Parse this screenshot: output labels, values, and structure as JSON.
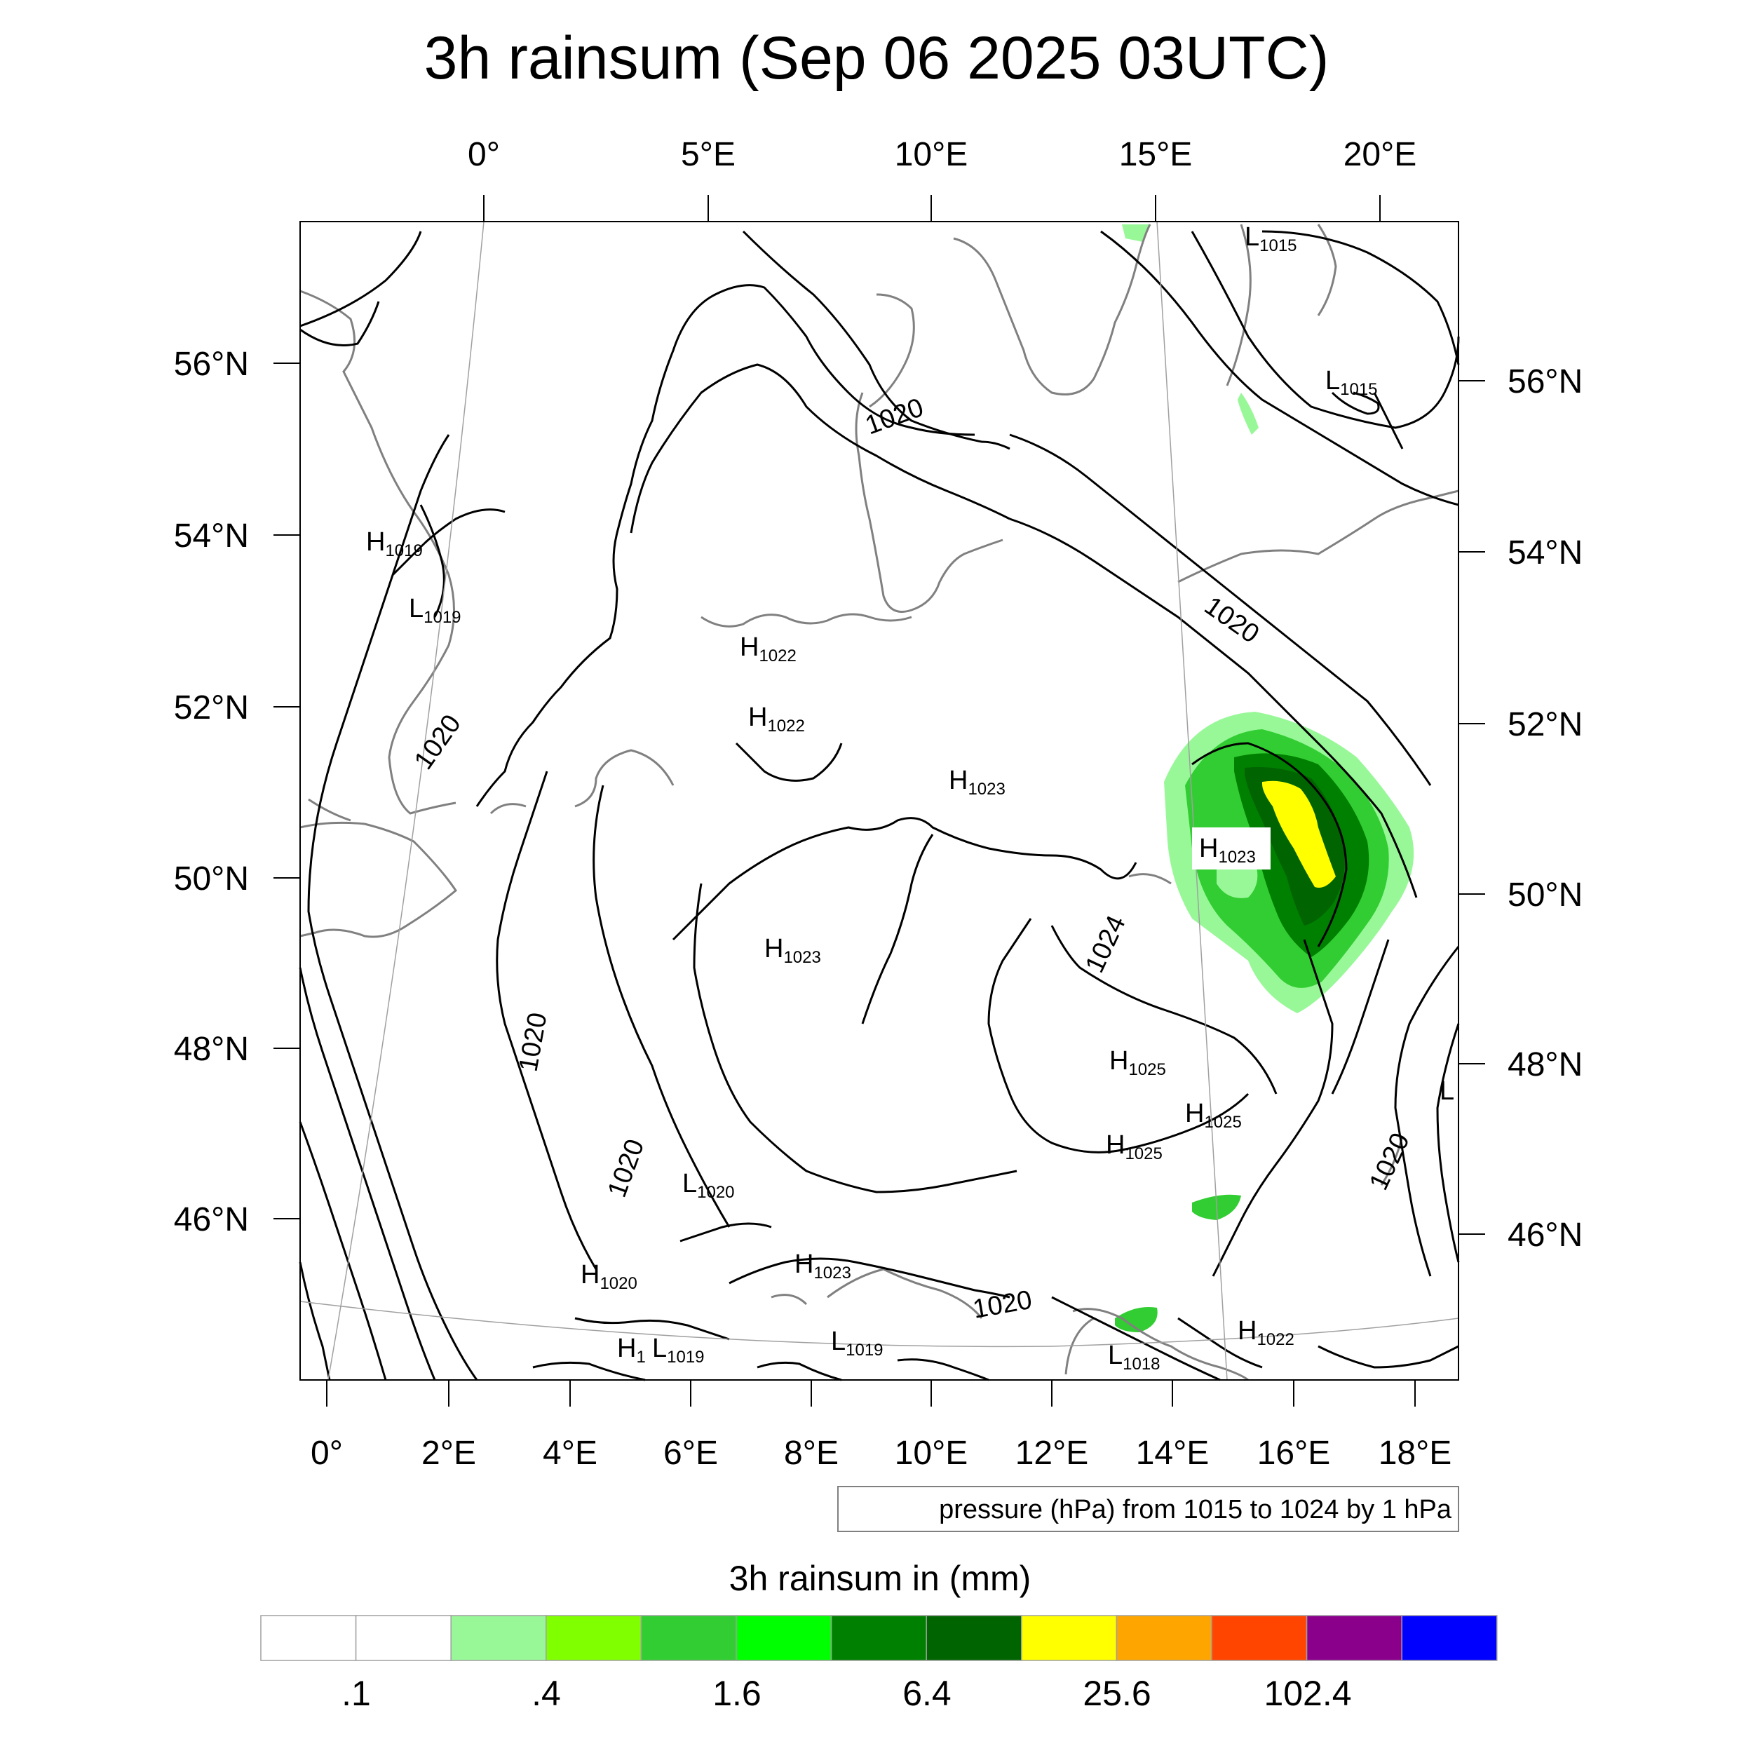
{
  "title": "3h rainsum (Sep 06 2025 03UTC)",
  "top_axis_labels": [
    "0°",
    "5°E",
    "10°E",
    "15°E",
    "20°E"
  ],
  "bottom_axis_labels": [
    "0°",
    "2°E",
    "4°E",
    "6°E",
    "8°E",
    "10°E",
    "12°E",
    "14°E",
    "16°E",
    "18°E"
  ],
  "left_axis_labels": [
    "56°N",
    "54°N",
    "52°N",
    "50°N",
    "48°N",
    "46°N"
  ],
  "right_axis_labels": [
    "56°N",
    "54°N",
    "52°N",
    "50°N",
    "48°N",
    "46°N"
  ],
  "contour_labels": [
    "1020",
    "1020",
    "1020",
    "1024",
    "1020",
    "1020",
    "1020",
    "1020"
  ],
  "pressure_centers": [
    {
      "kind": "L",
      "value": "1015"
    },
    {
      "kind": "L",
      "value": "1015"
    },
    {
      "kind": "H",
      "value": "1019"
    },
    {
      "kind": "L",
      "value": "1019"
    },
    {
      "kind": "H",
      "value": "1022"
    },
    {
      "kind": "H",
      "value": "1022"
    },
    {
      "kind": "H",
      "value": "1023"
    },
    {
      "kind": "H",
      "value": "1023"
    },
    {
      "kind": "H",
      "value": "1023"
    },
    {
      "kind": "H",
      "value": "1025"
    },
    {
      "kind": "H",
      "value": "1025"
    },
    {
      "kind": "H",
      "value": "1025"
    },
    {
      "kind": "L",
      "value": "1020"
    },
    {
      "kind": "H",
      "value": "1020"
    },
    {
      "kind": "H",
      "value": "1023"
    },
    {
      "kind": "H",
      "value": "1"
    },
    {
      "kind": "L",
      "value": "1019"
    },
    {
      "kind": "L",
      "value": "1019"
    },
    {
      "kind": "L",
      "value": "1018"
    },
    {
      "kind": "H",
      "value": "1022"
    },
    {
      "kind": "L",
      "value": ""
    }
  ],
  "info_box": "pressure (hPa) from 1015 to 1024 by 1 hPa",
  "colorbar": {
    "title": "3h rainsum in (mm)",
    "tick_labels": [
      ".1",
      ".4",
      "1.6",
      "6.4",
      "25.6",
      "102.4"
    ],
    "colors": [
      "#ffffff",
      "#ffffff",
      "#98f898",
      "#80ff00",
      "#32cd32",
      "#00ff00",
      "#008000",
      "#006400",
      "#ffff00",
      "#ffa500",
      "#ff4500",
      "#8b008b",
      "#0000ff"
    ]
  }
}
